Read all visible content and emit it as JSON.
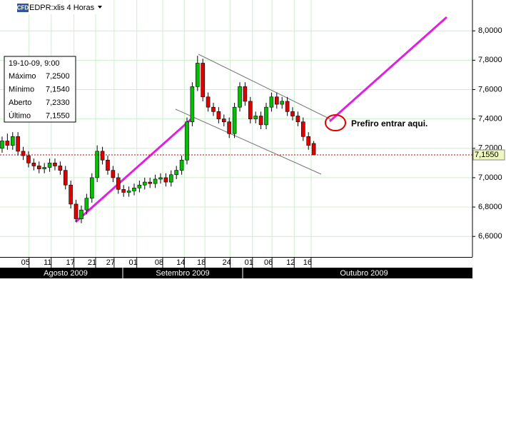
{
  "chart_data": {
    "type": "candlestick",
    "title": "EDPR:xlis 4 Horas",
    "logo": "CFD",
    "info": {
      "date": "19-10-09, 9:00",
      "rows": [
        [
          "Máximo",
          "7,2500"
        ],
        [
          "Mínimo",
          "7,1540"
        ],
        [
          "Aberto",
          "7,2330"
        ],
        [
          "Último",
          "7,1550"
        ]
      ]
    },
    "annotation": "Prefiro entrar aqui.",
    "last_price": {
      "value": 7.155,
      "label": "7,1550"
    },
    "up_color": "#00c000",
    "down_color": "#e00000",
    "x": [
      0,
      1,
      2,
      3,
      4,
      5,
      6,
      7,
      8,
      9,
      10,
      11,
      12,
      13,
      14,
      15,
      16,
      17,
      18,
      19,
      20,
      21,
      22,
      23,
      24,
      25,
      26,
      27,
      28,
      29,
      30,
      31,
      32,
      33,
      34,
      35,
      36,
      37,
      38,
      39,
      40,
      41,
      42,
      43,
      44,
      45,
      46,
      47,
      48,
      49,
      50,
      51,
      52,
      53,
      54,
      55,
      56,
      57,
      58,
      59
    ],
    "open": [
      7.2,
      7.25,
      7.22,
      7.28,
      7.18,
      7.15,
      7.1,
      7.08,
      7.06,
      7.07,
      7.1,
      7.08,
      7.05,
      6.95,
      6.82,
      6.72,
      6.78,
      6.86,
      7.0,
      7.18,
      7.12,
      7.05,
      7.0,
      6.92,
      6.9,
      6.91,
      6.93,
      6.95,
      6.97,
      6.96,
      6.99,
      7.0,
      6.97,
      7.02,
      7.05,
      7.12,
      7.38,
      7.62,
      7.78,
      7.55,
      7.48,
      7.45,
      7.4,
      7.38,
      7.3,
      7.48,
      7.62,
      7.52,
      7.4,
      7.42,
      7.36,
      7.48,
      7.55,
      7.5,
      7.52,
      7.45,
      7.42,
      7.38,
      7.28,
      7.233
    ],
    "high": [
      7.28,
      7.3,
      7.31,
      7.31,
      7.21,
      7.18,
      7.13,
      7.11,
      7.1,
      7.13,
      7.13,
      7.11,
      7.08,
      6.98,
      6.85,
      6.81,
      6.89,
      7.03,
      7.22,
      7.21,
      7.15,
      7.08,
      7.03,
      6.95,
      6.94,
      6.96,
      6.98,
      7.0,
      7.0,
      7.02,
      7.03,
      7.03,
      7.05,
      7.08,
      7.15,
      7.41,
      7.65,
      7.83,
      7.81,
      7.58,
      7.51,
      7.48,
      7.43,
      7.41,
      7.51,
      7.65,
      7.65,
      7.55,
      7.45,
      7.45,
      7.51,
      7.58,
      7.58,
      7.55,
      7.55,
      7.48,
      7.45,
      7.41,
      7.31,
      7.25
    ],
    "low": [
      7.17,
      7.19,
      7.19,
      7.15,
      7.12,
      7.07,
      7.05,
      7.03,
      7.03,
      7.04,
      7.05,
      7.02,
      6.92,
      6.79,
      6.7,
      6.69,
      6.75,
      6.83,
      6.97,
      7.09,
      7.02,
      6.97,
      6.89,
      6.87,
      6.87,
      6.88,
      6.9,
      6.92,
      6.93,
      6.93,
      6.96,
      6.94,
      6.94,
      6.99,
      7.02,
      7.09,
      7.35,
      7.59,
      7.52,
      7.45,
      7.42,
      7.37,
      7.35,
      7.27,
      7.27,
      7.45,
      7.49,
      7.37,
      7.37,
      7.33,
      7.33,
      7.45,
      7.47,
      7.47,
      7.42,
      7.39,
      7.35,
      7.25,
      7.19,
      7.154
    ],
    "close": [
      7.25,
      7.22,
      7.28,
      7.18,
      7.15,
      7.1,
      7.08,
      7.06,
      7.07,
      7.1,
      7.08,
      7.05,
      6.95,
      6.82,
      6.72,
      6.78,
      6.86,
      7.0,
      7.18,
      7.12,
      7.05,
      7.0,
      6.92,
      6.9,
      6.91,
      6.93,
      6.95,
      6.97,
      6.96,
      6.99,
      7.0,
      6.97,
      7.02,
      7.05,
      7.12,
      7.38,
      7.62,
      7.78,
      7.55,
      7.48,
      7.45,
      7.4,
      7.38,
      7.3,
      7.48,
      7.62,
      7.52,
      7.4,
      7.42,
      7.36,
      7.48,
      7.55,
      7.5,
      7.52,
      7.45,
      7.42,
      7.38,
      7.28,
      7.22,
      7.155
    ],
    "xlim": [
      -0.4,
      89.05
    ],
    "ylim": [
      6.46,
      8.21
    ],
    "xticks": [
      {
        "value": 5.1,
        "label": "05"
      },
      {
        "value": 9.3,
        "label": "11"
      },
      {
        "value": 13.6,
        "label": "17"
      },
      {
        "value": 17.7,
        "label": "21"
      },
      {
        "value": 21.2,
        "label": "27"
      },
      {
        "value": 25.5,
        "label": "01"
      },
      {
        "value": 30.4,
        "label": "08"
      },
      {
        "value": 34.5,
        "label": "14"
      },
      {
        "value": 38.4,
        "label": "18"
      },
      {
        "value": 43.2,
        "label": "24"
      },
      {
        "value": 47.4,
        "label": "01"
      },
      {
        "value": 51.1,
        "label": "06"
      },
      {
        "value": 55.3,
        "label": "12"
      },
      {
        "value": 58.5,
        "label": "16"
      }
    ],
    "yticks": [
      {
        "value": 6.6,
        "label": "6,6000"
      },
      {
        "value": 6.8,
        "label": "6,8000"
      },
      {
        "value": 7.0,
        "label": "7,0000"
      },
      {
        "value": 7.2,
        "label": "7,2000"
      },
      {
        "value": 7.4,
        "label": "7,4000"
      },
      {
        "value": 7.6,
        "label": "7,6000"
      },
      {
        "value": 7.8,
        "label": "7,8000"
      },
      {
        "value": 8.0,
        "label": "8,0000"
      }
    ],
    "months": [
      "Agosto 2009",
      "Setembro 2009",
      "Outubro 2009"
    ],
    "grid": true
  }
}
